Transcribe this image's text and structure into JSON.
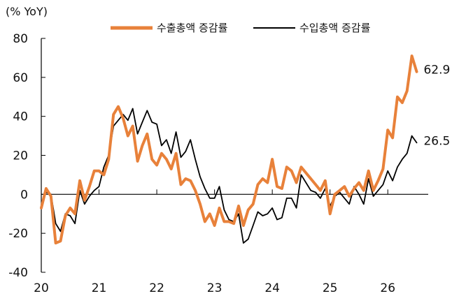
{
  "chart_data": {
    "type": "line",
    "unit_label": "(% YoY)",
    "ylim": [
      -40,
      80
    ],
    "yticks": [
      -40,
      -20,
      0,
      20,
      40,
      60,
      80
    ],
    "xlim": [
      2020,
      2026.7
    ],
    "xticks": [
      {
        "value": 2020,
        "label": "20"
      },
      {
        "value": 2021,
        "label": "21"
      },
      {
        "value": 2022,
        "label": "22"
      },
      {
        "value": 2023,
        "label": "23"
      },
      {
        "value": 2024,
        "label": "24"
      },
      {
        "value": 2025,
        "label": "25"
      },
      {
        "value": 2026,
        "label": "26"
      }
    ],
    "legend_position": "top",
    "series": [
      {
        "name": "수출총액 증감률",
        "color": "#E8813A",
        "end_label": "62.9",
        "points": [
          [
            2020.0,
            -7
          ],
          [
            2020.083,
            3
          ],
          [
            2020.167,
            -1
          ],
          [
            2020.25,
            -25
          ],
          [
            2020.333,
            -24
          ],
          [
            2020.417,
            -11
          ],
          [
            2020.5,
            -7
          ],
          [
            2020.583,
            -10
          ],
          [
            2020.667,
            7
          ],
          [
            2020.75,
            -3
          ],
          [
            2020.833,
            4
          ],
          [
            2020.917,
            12
          ],
          [
            2021.0,
            12
          ],
          [
            2021.083,
            10
          ],
          [
            2021.167,
            18
          ],
          [
            2021.25,
            41
          ],
          [
            2021.333,
            45
          ],
          [
            2021.417,
            39
          ],
          [
            2021.5,
            30
          ],
          [
            2021.583,
            35
          ],
          [
            2021.667,
            17
          ],
          [
            2021.75,
            25
          ],
          [
            2021.833,
            31
          ],
          [
            2021.917,
            18
          ],
          [
            2022.0,
            15
          ],
          [
            2022.083,
            21
          ],
          [
            2022.167,
            18
          ],
          [
            2022.25,
            13
          ],
          [
            2022.333,
            21
          ],
          [
            2022.417,
            5
          ],
          [
            2022.5,
            8
          ],
          [
            2022.583,
            7
          ],
          [
            2022.667,
            2
          ],
          [
            2022.75,
            -5
          ],
          [
            2022.833,
            -14
          ],
          [
            2022.917,
            -10
          ],
          [
            2023.0,
            -16
          ],
          [
            2023.083,
            -7
          ],
          [
            2023.167,
            -14
          ],
          [
            2023.25,
            -14
          ],
          [
            2023.333,
            -15
          ],
          [
            2023.417,
            -6
          ],
          [
            2023.5,
            -16
          ],
          [
            2023.583,
            -8
          ],
          [
            2023.667,
            -5
          ],
          [
            2023.75,
            5
          ],
          [
            2023.833,
            8
          ],
          [
            2023.917,
            6
          ],
          [
            2024.0,
            18
          ],
          [
            2024.083,
            4
          ],
          [
            2024.167,
            3
          ],
          [
            2024.25,
            14
          ],
          [
            2024.333,
            12
          ],
          [
            2024.417,
            6
          ],
          [
            2024.5,
            14
          ],
          [
            2024.583,
            11
          ],
          [
            2024.667,
            8
          ],
          [
            2024.75,
            5
          ],
          [
            2024.833,
            2
          ],
          [
            2024.917,
            7
          ],
          [
            2025.0,
            -10
          ],
          [
            2025.083,
            0
          ],
          [
            2025.167,
            2
          ],
          [
            2025.25,
            4
          ],
          [
            2025.333,
            -1
          ],
          [
            2025.417,
            3
          ],
          [
            2025.5,
            6
          ],
          [
            2025.583,
            2
          ],
          [
            2025.667,
            12
          ],
          [
            2025.75,
            2
          ],
          [
            2025.833,
            7
          ],
          [
            2025.917,
            13
          ],
          [
            2026.0,
            33
          ],
          [
            2026.083,
            29
          ],
          [
            2026.167,
            50
          ],
          [
            2026.25,
            47
          ],
          [
            2026.333,
            53
          ],
          [
            2026.417,
            71
          ],
          [
            2026.5,
            62.9
          ]
        ]
      },
      {
        "name": "수입총액 증감률",
        "color": "#000000",
        "end_label": "26.5",
        "points": [
          [
            2020.0,
            -5
          ],
          [
            2020.083,
            1
          ],
          [
            2020.167,
            0
          ],
          [
            2020.25,
            -15
          ],
          [
            2020.333,
            -19
          ],
          [
            2020.417,
            -10
          ],
          [
            2020.5,
            -11
          ],
          [
            2020.583,
            -15
          ],
          [
            2020.667,
            2
          ],
          [
            2020.75,
            -5
          ],
          [
            2020.833,
            -1
          ],
          [
            2020.917,
            2
          ],
          [
            2021.0,
            4
          ],
          [
            2021.083,
            14
          ],
          [
            2021.167,
            20
          ],
          [
            2021.25,
            35
          ],
          [
            2021.333,
            38
          ],
          [
            2021.417,
            41
          ],
          [
            2021.5,
            38
          ],
          [
            2021.583,
            44
          ],
          [
            2021.667,
            31
          ],
          [
            2021.75,
            37
          ],
          [
            2021.833,
            43
          ],
          [
            2021.917,
            37
          ],
          [
            2022.0,
            36
          ],
          [
            2022.083,
            25
          ],
          [
            2022.167,
            28
          ],
          [
            2022.25,
            21
          ],
          [
            2022.333,
            32
          ],
          [
            2022.417,
            19
          ],
          [
            2022.5,
            22
          ],
          [
            2022.583,
            28
          ],
          [
            2022.667,
            18
          ],
          [
            2022.75,
            9
          ],
          [
            2022.833,
            3
          ],
          [
            2022.917,
            -2
          ],
          [
            2023.0,
            -2
          ],
          [
            2023.083,
            4
          ],
          [
            2023.167,
            -8
          ],
          [
            2023.25,
            -13
          ],
          [
            2023.333,
            -14
          ],
          [
            2023.417,
            -10
          ],
          [
            2023.5,
            -25
          ],
          [
            2023.583,
            -23
          ],
          [
            2023.667,
            -16
          ],
          [
            2023.75,
            -9
          ],
          [
            2023.833,
            -11
          ],
          [
            2023.917,
            -10
          ],
          [
            2024.0,
            -7
          ],
          [
            2024.083,
            -13
          ],
          [
            2024.167,
            -12
          ],
          [
            2024.25,
            -2
          ],
          [
            2024.333,
            -2
          ],
          [
            2024.417,
            -7
          ],
          [
            2024.5,
            10
          ],
          [
            2024.583,
            6
          ],
          [
            2024.667,
            2
          ],
          [
            2024.75,
            1
          ],
          [
            2024.833,
            -2
          ],
          [
            2024.917,
            3
          ],
          [
            2025.0,
            -6
          ],
          [
            2025.083,
            -1
          ],
          [
            2025.167,
            1
          ],
          [
            2025.25,
            -2
          ],
          [
            2025.333,
            -5
          ],
          [
            2025.417,
            4
          ],
          [
            2025.5,
            0
          ],
          [
            2025.583,
            -5
          ],
          [
            2025.667,
            8
          ],
          [
            2025.75,
            -1
          ],
          [
            2025.833,
            2
          ],
          [
            2025.917,
            5
          ],
          [
            2026.0,
            12
          ],
          [
            2026.083,
            7
          ],
          [
            2026.167,
            14
          ],
          [
            2026.25,
            18
          ],
          [
            2026.333,
            21
          ],
          [
            2026.417,
            30
          ],
          [
            2026.5,
            26.5
          ]
        ]
      }
    ]
  }
}
